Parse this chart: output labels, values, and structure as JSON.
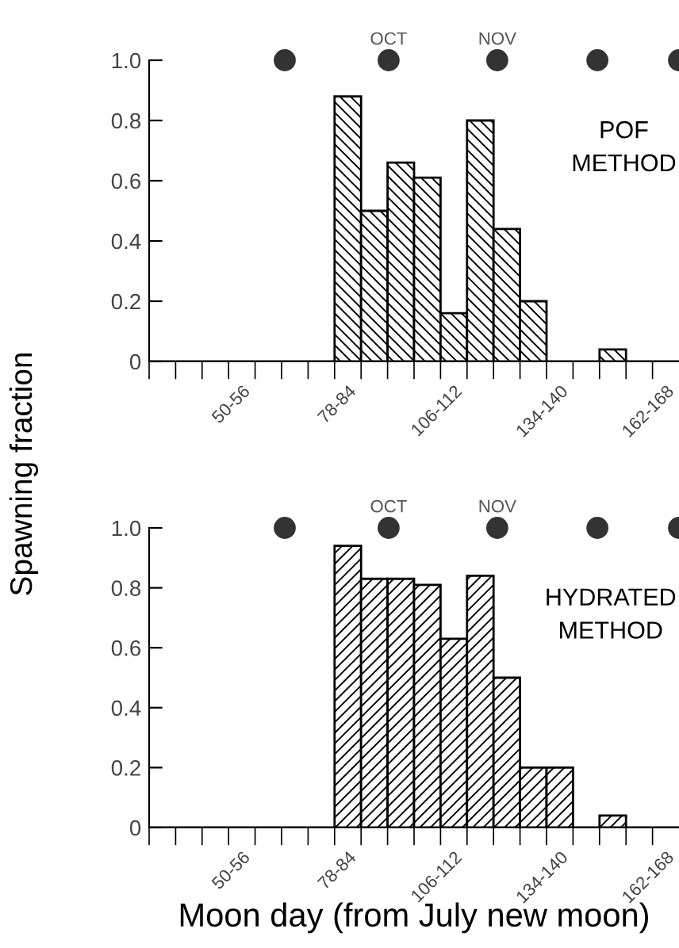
{
  "chart_data": [
    {
      "type": "bar",
      "ylabel": "Spawning fraction",
      "categories": [
        null,
        null,
        null,
        "50-56",
        null,
        null,
        null,
        "78-84",
        null,
        null,
        null,
        "106-112",
        null,
        null,
        null,
        "134-140",
        null,
        null,
        null,
        "162-168"
      ],
      "values": [
        0,
        0,
        0,
        0,
        0,
        0,
        0,
        0.88,
        0.5,
        0.66,
        0.61,
        0.16,
        0.8,
        0.44,
        0.2,
        0,
        0,
        0.04,
        0,
        0
      ],
      "color": "#000000",
      "annotations": [
        "OCT",
        "NOV",
        "POF\nMETHOD"
      ],
      "ylim": [
        0,
        1
      ],
      "yticks": [
        0,
        0.2,
        0.4,
        0.6,
        0.8,
        {
          "value": 1,
          "label": "1.0"
        }
      ],
      "grid": false,
      "legend": false
    },
    {
      "type": "bar",
      "xlabel": "Moon day (from July new moon)",
      "categories": [
        null,
        null,
        null,
        "50-56",
        null,
        null,
        null,
        "78-84",
        null,
        null,
        null,
        "106-112",
        null,
        null,
        null,
        "134-140",
        null,
        null,
        null,
        "162-168"
      ],
      "values": [
        0,
        0,
        0,
        0,
        0,
        0,
        0,
        0.94,
        0.83,
        0.83,
        0.81,
        0.63,
        0.84,
        0.5,
        0.2,
        0.2,
        0,
        0.04,
        0,
        0
      ],
      "color": "#000000",
      "annotations": [
        "OCT",
        "NOV",
        "HYDRATED\nMETHOD"
      ],
      "ylim": [
        0,
        1
      ],
      "yticks": [
        0,
        0.2,
        0.4,
        0.6,
        0.8,
        {
          "value": 1,
          "label": "1.0"
        }
      ],
      "grid": false,
      "legend": false
    }
  ]
}
